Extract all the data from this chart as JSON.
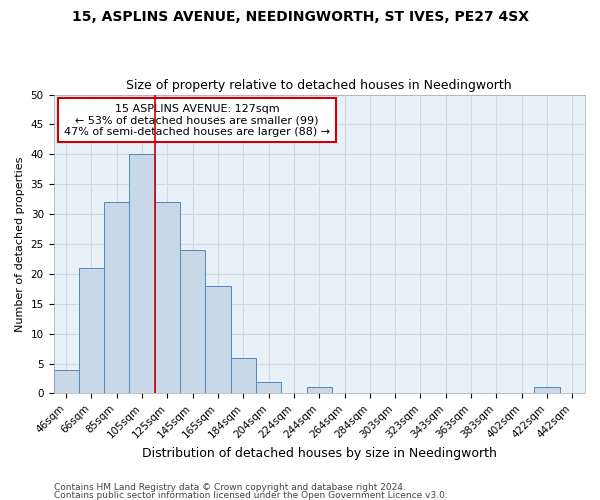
{
  "title1": "15, ASPLINS AVENUE, NEEDINGWORTH, ST IVES, PE27 4SX",
  "title2": "Size of property relative to detached houses in Needingworth",
  "xlabel": "Distribution of detached houses by size in Needingworth",
  "ylabel": "Number of detached properties",
  "categories": [
    "46sqm",
    "66sqm",
    "85sqm",
    "105sqm",
    "125sqm",
    "145sqm",
    "165sqm",
    "184sqm",
    "204sqm",
    "224sqm",
    "244sqm",
    "264sqm",
    "284sqm",
    "303sqm",
    "323sqm",
    "343sqm",
    "363sqm",
    "383sqm",
    "402sqm",
    "422sqm",
    "442sqm"
  ],
  "values": [
    4,
    21,
    32,
    40,
    32,
    24,
    18,
    6,
    2,
    0,
    1,
    0,
    0,
    0,
    0,
    0,
    0,
    0,
    0,
    1,
    0
  ],
  "bar_color": "#c8d8e8",
  "bar_edge_color": "#5588bb",
  "vline_color": "#cc0000",
  "annotation_line1": "15 ASPLINS AVENUE: 127sqm",
  "annotation_line2": "← 53% of detached houses are smaller (99)",
  "annotation_line3": "47% of semi-detached houses are larger (88) →",
  "annotation_box_color": "white",
  "annotation_box_edge_color": "#cc0000",
  "ylim": [
    0,
    50
  ],
  "yticks": [
    0,
    5,
    10,
    15,
    20,
    25,
    30,
    35,
    40,
    45,
    50
  ],
  "grid_color": "#d0d8e0",
  "background_color": "#e8f0f8",
  "footer1": "Contains HM Land Registry data © Crown copyright and database right 2024.",
  "footer2": "Contains public sector information licensed under the Open Government Licence v3.0.",
  "title1_fontsize": 10,
  "title2_fontsize": 9,
  "xlabel_fontsize": 9,
  "ylabel_fontsize": 8,
  "tick_fontsize": 7.5,
  "annotation_fontsize": 8,
  "footer_fontsize": 6.5
}
